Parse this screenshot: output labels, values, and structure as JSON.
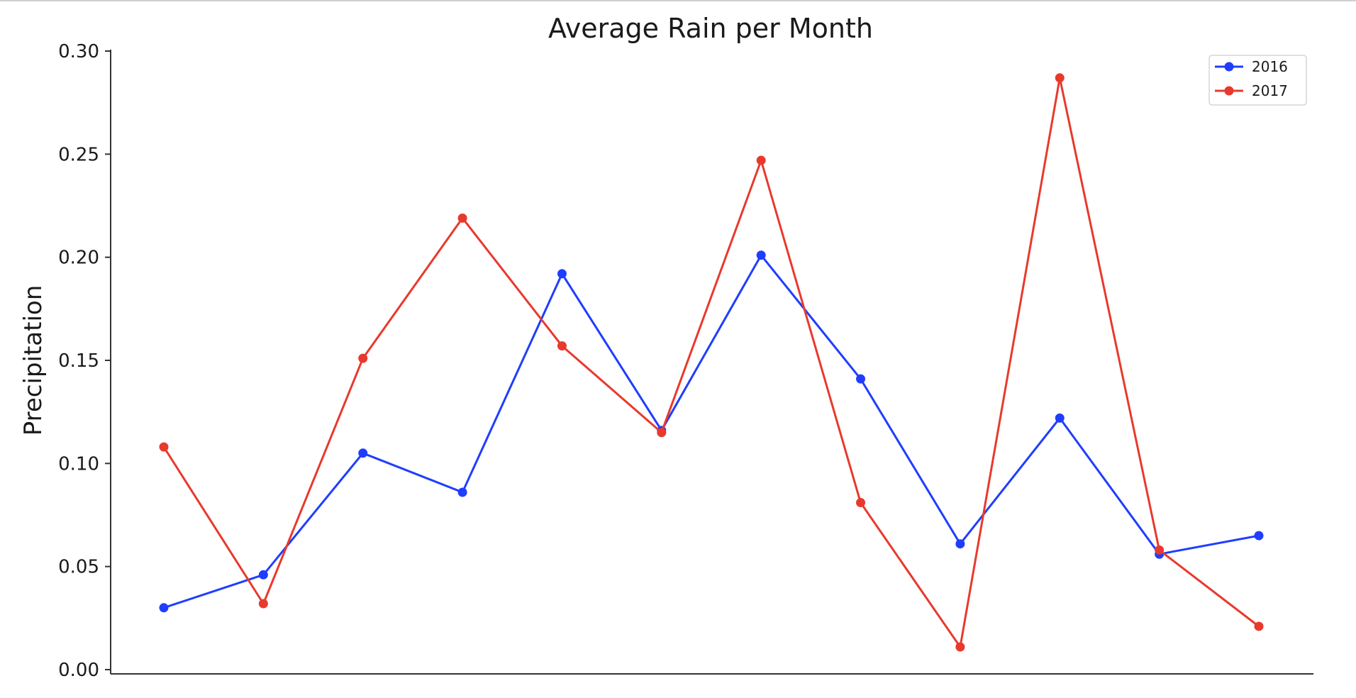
{
  "chart_data": {
    "type": "line",
    "title": "Average Rain per Month",
    "xlabel": "",
    "ylabel": "Precipitation",
    "ylim": [
      0,
      0.3
    ],
    "yticks": [
      "0.00",
      "0.05",
      "0.10",
      "0.15",
      "0.20",
      "0.25",
      "0.30"
    ],
    "ytick_values": [
      0,
      0.05,
      0.1,
      0.15,
      0.2,
      0.25,
      0.3
    ],
    "x": [
      1,
      2,
      3,
      4,
      5,
      6,
      7,
      8,
      9,
      10,
      11,
      12
    ],
    "grid": false,
    "legend_position": "top-right",
    "series": [
      {
        "name": "2016",
        "color": "#1f3dff",
        "values": [
          0.03,
          0.046,
          0.105,
          0.086,
          0.192,
          0.116,
          0.201,
          0.141,
          0.061,
          0.122,
          0.056,
          0.065
        ]
      },
      {
        "name": "2017",
        "color": "#e8392d",
        "values": [
          0.108,
          0.032,
          0.151,
          0.219,
          0.157,
          0.115,
          0.247,
          0.081,
          0.011,
          0.287,
          0.058,
          0.021
        ]
      }
    ]
  }
}
